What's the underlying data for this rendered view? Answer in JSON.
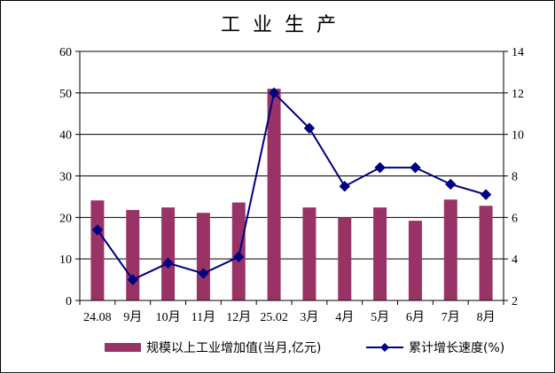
{
  "chart_data": {
    "type": "bar",
    "title": "工业生产",
    "categories": [
      "24.08",
      "9月",
      "10月",
      "11月",
      "12月",
      "25.02",
      "3月",
      "4月",
      "5月",
      "6月",
      "7月",
      "8月"
    ],
    "series": [
      {
        "name": "规模以上工业增加值(当月,亿元)",
        "axis": "left",
        "type": "bar",
        "color": "#993366",
        "values": [
          24.1,
          21.8,
          22.4,
          21.1,
          23.6,
          51.0,
          22.4,
          20.0,
          22.4,
          19.2,
          24.3,
          22.8
        ]
      },
      {
        "name": "累计增长速度(%)",
        "axis": "right",
        "type": "line",
        "color": "#000080",
        "values": [
          5.4,
          3.0,
          3.8,
          3.3,
          4.1,
          12.0,
          10.3,
          7.5,
          8.4,
          8.4,
          7.6,
          7.1
        ]
      }
    ],
    "yleft": {
      "ticks": [
        0,
        10,
        20,
        30,
        40,
        50,
        60
      ],
      "ylim": [
        0,
        60
      ]
    },
    "yright": {
      "ticks": [
        2,
        4,
        6,
        8,
        10,
        12,
        14
      ],
      "ylim": [
        2,
        14
      ]
    },
    "grid": "horizontal",
    "legend": "bottom"
  }
}
